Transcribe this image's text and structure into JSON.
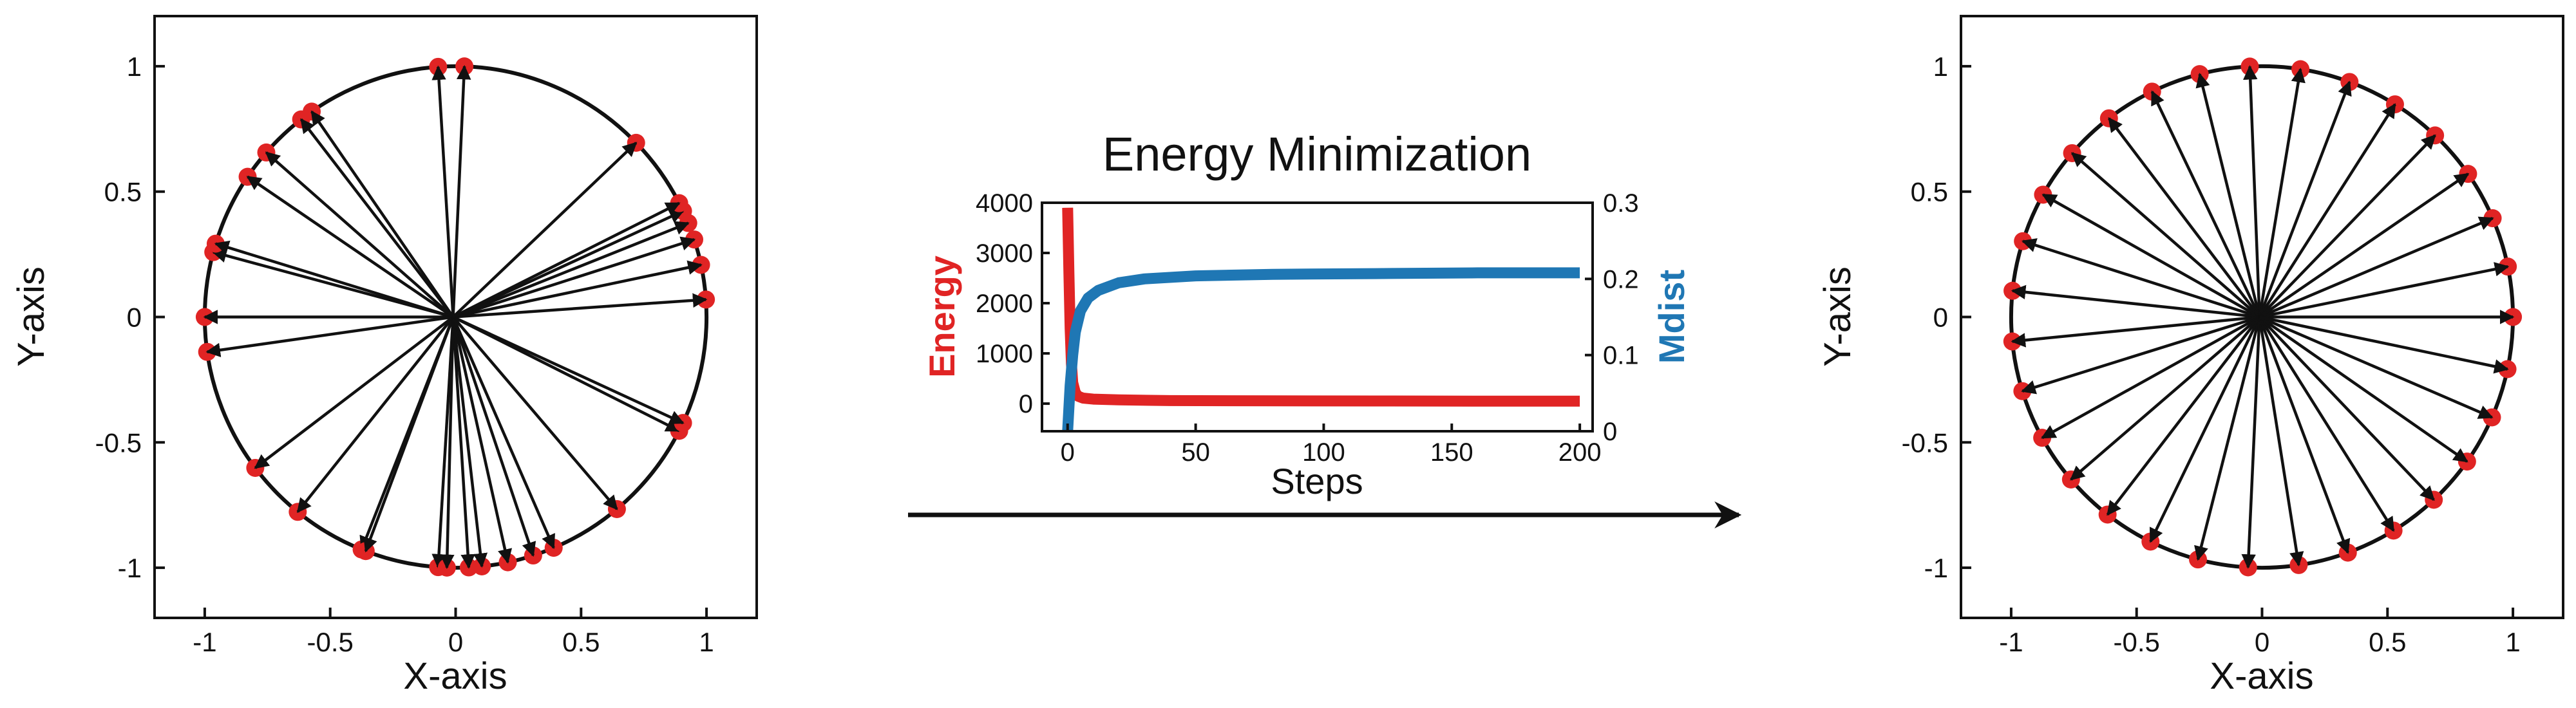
{
  "colors": {
    "points": "#e02424",
    "energy": "#e02424",
    "mdist": "#1f77b4",
    "ink": "#111111"
  },
  "chart_data": [
    {
      "type": "scatter",
      "panel": "initial",
      "xlabel": "X-axis",
      "ylabel": "Y-axis",
      "xlim": [
        -1.2,
        1.2
      ],
      "ylim": [
        -1.2,
        1.2
      ],
      "xticks": [
        -1,
        -0.5,
        0,
        0.5,
        1
      ],
      "yticks": [
        -1,
        -0.5,
        0,
        0.5,
        1
      ],
      "xtick_labels": [
        "-1",
        "-0.5",
        "0",
        "0.5",
        "1"
      ],
      "ytick_labels": [
        "-1",
        "-0.5",
        "0",
        "0.5",
        "1"
      ],
      "vector_origin": [
        -0.01,
        0.0
      ],
      "points_deg": [
        94,
        88,
        128,
        125,
        146,
        139,
        165,
        163,
        180,
        188,
        217,
        231,
        248,
        249,
        266,
        268,
        273,
        276,
        282,
        288,
        293,
        310,
        333,
        335,
        4,
        12,
        18,
        22,
        25,
        27,
        44
      ]
    },
    {
      "type": "line",
      "panel": "energy-minimization",
      "title": "Energy Minimization",
      "xlabel": "Steps",
      "ylabel_left": "Energy",
      "ylabel_right": "Mdist",
      "xlim": [
        -10,
        205
      ],
      "ylim_left": [
        -550,
        4000
      ],
      "ylim_right": [
        0,
        0.3
      ],
      "xticks": [
        0,
        50,
        100,
        150,
        200
      ],
      "yticks_left": [
        0,
        1000,
        2000,
        3000,
        4000
      ],
      "yticks_right": [
        0,
        0.1,
        0.2,
        0.3
      ],
      "xtick_labels": [
        "0",
        "50",
        "100",
        "150",
        "200"
      ],
      "ytick_labels_left": [
        "0",
        "1000",
        "2000",
        "3000",
        "4000"
      ],
      "ytick_labels_right": [
        "0",
        "0.1",
        "0.2",
        "0.3"
      ],
      "series": [
        {
          "name": "Energy",
          "axis": "left",
          "x": [
            0,
            0.5,
            1,
            1.5,
            2,
            3,
            4,
            6,
            10,
            20,
            40,
            80,
            120,
            160,
            200
          ],
          "values": [
            3900,
            2600,
            1500,
            800,
            420,
            220,
            150,
            110,
            90,
            75,
            60,
            55,
            52,
            50,
            50
          ]
        },
        {
          "name": "Mdist",
          "axis": "right",
          "x": [
            0,
            1,
            2,
            3,
            5,
            8,
            12,
            20,
            30,
            50,
            80,
            120,
            160,
            200
          ],
          "values": [
            0.0,
            0.06,
            0.1,
            0.13,
            0.158,
            0.175,
            0.185,
            0.195,
            0.2,
            0.204,
            0.206,
            0.207,
            0.208,
            0.208
          ]
        }
      ]
    },
    {
      "type": "scatter",
      "panel": "final",
      "xlabel": "X-axis",
      "ylabel": "Y-axis",
      "xlim": [
        -1.2,
        1.2
      ],
      "ylim": [
        -1.2,
        1.2
      ],
      "xticks": [
        -1,
        -0.5,
        0,
        0.5,
        1
      ],
      "yticks": [
        -1,
        -0.5,
        0,
        0.5,
        1
      ],
      "xtick_labels": [
        "-1",
        "-0.5",
        "0",
        "0.5",
        "1"
      ],
      "ytick_labels": [
        "-1",
        "-0.5",
        "0",
        "0.5",
        "1"
      ],
      "vector_origin": [
        -0.01,
        0.0
      ],
      "points_deg": [
        0,
        11.6,
        23.2,
        34.8,
        46.4,
        58,
        69.6,
        81.2,
        92.8,
        104.4,
        116,
        127.6,
        139.2,
        150.8,
        162.4,
        174,
        185.6,
        197.2,
        208.8,
        220.4,
        232,
        243.6,
        255.2,
        266.8,
        278.4,
        290,
        301.6,
        313.2,
        324.8,
        336.4,
        348
      ]
    }
  ]
}
